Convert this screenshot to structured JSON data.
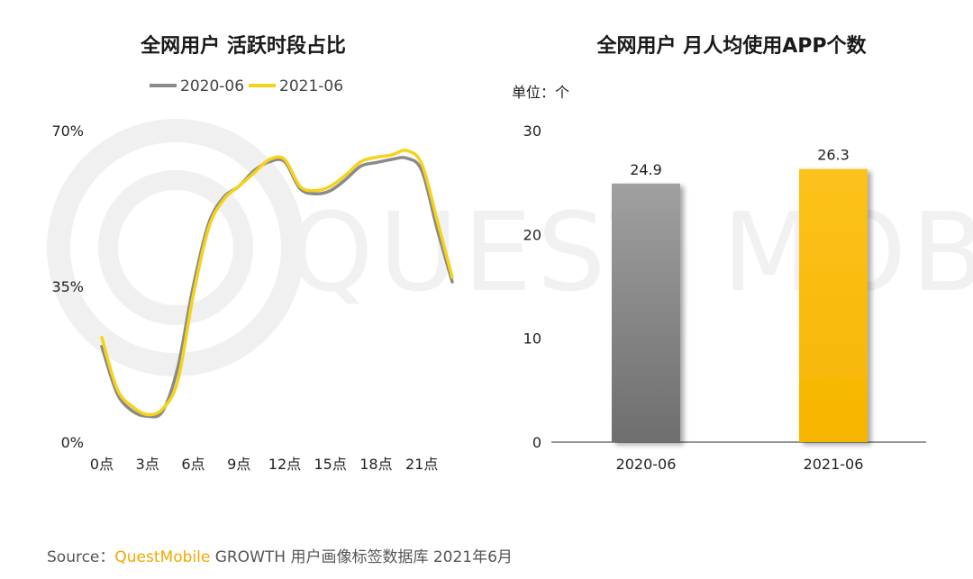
{
  "footer": {
    "prefix": "Source：",
    "brand": "QuestMobile",
    "suffix": " GROWTH 用户画像标签数据库 2021年6月"
  },
  "watermark": "QUEST MOBILE",
  "colors": {
    "series_2020": "#8a8a8a",
    "series_2021": "#f7d21a",
    "bar_2020": "#8c8c8c",
    "bar_2021": "#fbbc14"
  },
  "chart_data": [
    {
      "type": "line",
      "title": "全网用户 活跃时段占比",
      "legend_position": "top",
      "x_tick_labels": [
        "0点",
        "3点",
        "6点",
        "9点",
        "12点",
        "15点",
        "18点",
        "21点"
      ],
      "x_range": [
        0,
        23
      ],
      "ylim": [
        0,
        70
      ],
      "y_tick_labels": [
        "0%",
        "35%",
        "70%"
      ],
      "y_ticks": [
        0,
        35,
        70
      ],
      "series": [
        {
          "name": "2020-06",
          "color": "#8a8a8a",
          "x": [
            0,
            1,
            2,
            3,
            4,
            5,
            6,
            7,
            8,
            9,
            10,
            11,
            12,
            13,
            14,
            15,
            16,
            17,
            18,
            19,
            20,
            21,
            22,
            23
          ],
          "y": [
            21.5,
            11,
            7,
            5.8,
            7,
            17,
            35,
            49,
            55,
            57.5,
            61,
            63,
            63,
            57,
            55.8,
            56.5,
            59,
            62,
            62.8,
            63.5,
            63.8,
            61,
            48,
            36
          ]
        },
        {
          "name": "2021-06",
          "color": "#f7d21a",
          "x": [
            0,
            1,
            2,
            3,
            4,
            5,
            6,
            7,
            8,
            9,
            10,
            11,
            12,
            13,
            14,
            15,
            16,
            17,
            18,
            19,
            20,
            21,
            22,
            23
          ],
          "y": [
            23.5,
            12,
            8,
            6.2,
            7.5,
            14,
            33,
            48,
            54.5,
            57.5,
            60.5,
            63.5,
            63.5,
            57.5,
            56.5,
            57.5,
            60,
            63,
            64,
            64.5,
            65.5,
            62.5,
            50,
            37
          ]
        }
      ]
    },
    {
      "type": "bar",
      "title": "全网用户 月人均使用APP个数",
      "unit_label": "单位：个",
      "categories": [
        "2020-06",
        "2021-06"
      ],
      "values": [
        24.9,
        26.3
      ],
      "value_labels": [
        "24.9",
        "26.3"
      ],
      "ylim": [
        0,
        30
      ],
      "y_ticks": [
        0,
        10,
        20,
        30
      ],
      "y_tick_labels": [
        "0",
        "10",
        "20",
        "30"
      ],
      "colors": [
        "#8c8c8c",
        "#fbbc14"
      ]
    }
  ]
}
